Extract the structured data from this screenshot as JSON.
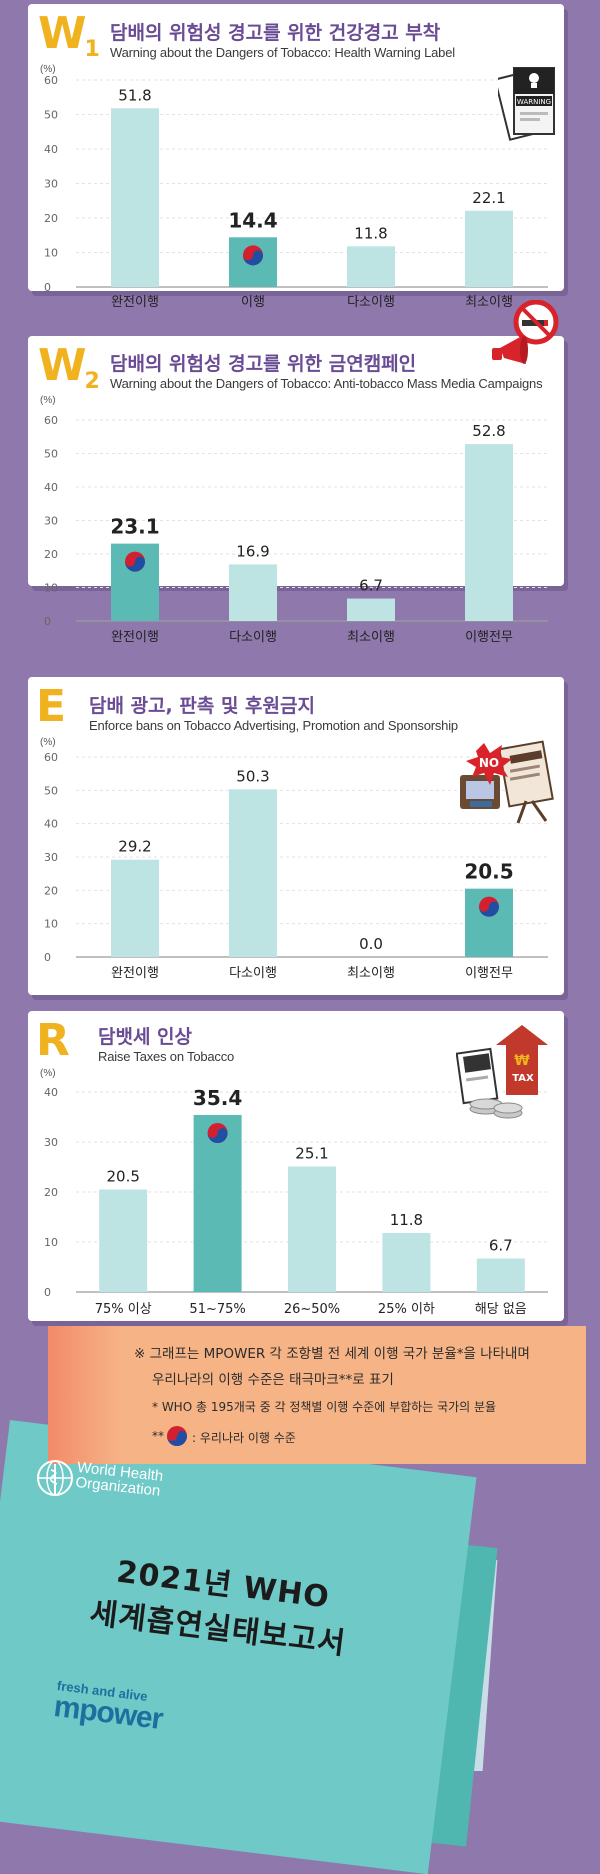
{
  "colors": {
    "background": "#8e78ac",
    "bar_light": "#bde4e3",
    "bar_korea": "#5bbab4",
    "badge": "#f0b21f",
    "title": "#6a4c94",
    "note_bg": "#f6b386",
    "cover": "#6ec9c7"
  },
  "sections": [
    {
      "badge": "W",
      "badge_sub": "1",
      "title_ko": "담배의 위험성 경고를 위한 건강경고 부착",
      "title_en": "Warning about the Dangers of Tobacco: Health Warning Label",
      "unit": "(%)",
      "icon": "cigarette-pack-icon",
      "icon_text": "WARNING"
    },
    {
      "badge": "W",
      "badge_sub": "2",
      "title_ko": "담배의 위험성 경고를 위한 금연캠페인",
      "title_en": "Warning about the Dangers of Tobacco: Anti-tobacco Mass Media Campaigns",
      "unit": "(%)",
      "icon": "megaphone-no-smoking-icon"
    },
    {
      "badge": "E",
      "badge_sub": "",
      "title_ko": "담배 광고, 판촉 및 후원금지",
      "title_en": "Enforce bans on Tobacco Advertising, Promotion and Sponsorship",
      "unit": "(%)",
      "icon": "no-advertising-icon",
      "icon_text": "NO"
    },
    {
      "badge": "R",
      "badge_sub": "",
      "title_ko": "담뱃세 인상",
      "title_en": "Raise Taxes on Tobacco",
      "unit": "(%)",
      "icon": "tax-increase-icon",
      "icon_text": "TAX",
      "icon_currency": "₩"
    }
  ],
  "chart_data": [
    {
      "type": "bar",
      "categories": [
        "완전이행",
        "이행",
        "다소이행",
        "최소이행"
      ],
      "values": [
        51.8,
        14.4,
        11.8,
        22.1
      ],
      "value_labels": [
        "51.8",
        "14.4",
        "11.8",
        "22.1"
      ],
      "highlight_index": 1,
      "ylim": [
        0,
        60
      ],
      "yticks": [
        "0",
        "10",
        "20",
        "30",
        "40",
        "50",
        "60"
      ],
      "grid": true
    },
    {
      "type": "bar",
      "categories": [
        "완전이행",
        "다소이행",
        "최소이행",
        "이행전무"
      ],
      "values": [
        23.1,
        16.9,
        6.7,
        52.8
      ],
      "value_labels": [
        "23.1",
        "16.9",
        "6.7",
        "52.8"
      ],
      "highlight_index": 0,
      "ylim": [
        0,
        60
      ],
      "yticks": [
        "0",
        "10",
        "20",
        "30",
        "40",
        "50",
        "60"
      ],
      "grid": true
    },
    {
      "type": "bar",
      "categories": [
        "완전이행",
        "다소이행",
        "최소이행",
        "이행전무"
      ],
      "values": [
        29.2,
        50.3,
        0.0,
        20.5
      ],
      "value_labels": [
        "29.2",
        "50.3",
        "0.0",
        "20.5"
      ],
      "highlight_index": 3,
      "ylim": [
        0,
        60
      ],
      "yticks": [
        "0",
        "10",
        "20",
        "30",
        "40",
        "50",
        "60"
      ],
      "grid": true
    },
    {
      "type": "bar",
      "categories": [
        "75% 이상",
        "51~75%",
        "26~50%",
        "25% 이하",
        "해당 없음"
      ],
      "values": [
        20.5,
        35.4,
        25.1,
        11.8,
        6.7
      ],
      "value_labels": [
        "20.5",
        "35.4",
        "25.1",
        "11.8",
        "6.7"
      ],
      "highlight_index": 1,
      "ylim": [
        0,
        40
      ],
      "yticks": [
        "0",
        "10",
        "20",
        "30",
        "40"
      ],
      "grid": true
    }
  ],
  "note": {
    "line1": "※ 그래프는 MPOWER 각 조항별 전 세계 이행 국가 분율*을 나타내며",
    "line2": "우리나라의 이행 수준은 태극마크**로 표기",
    "line3": "* WHO 총 195개국 중 각 정책별 이행 수준에 부합하는 국가의 분율",
    "line4_prefix": "**",
    "line4": ": 우리나라 이행 수준"
  },
  "cover": {
    "org_line1": "World Health",
    "org_line2": "Organization",
    "title_line1": "2021년 WHO",
    "title_line2": "세계흡연실태보고서",
    "tagline": "fresh and alive",
    "brand": "mpower"
  }
}
